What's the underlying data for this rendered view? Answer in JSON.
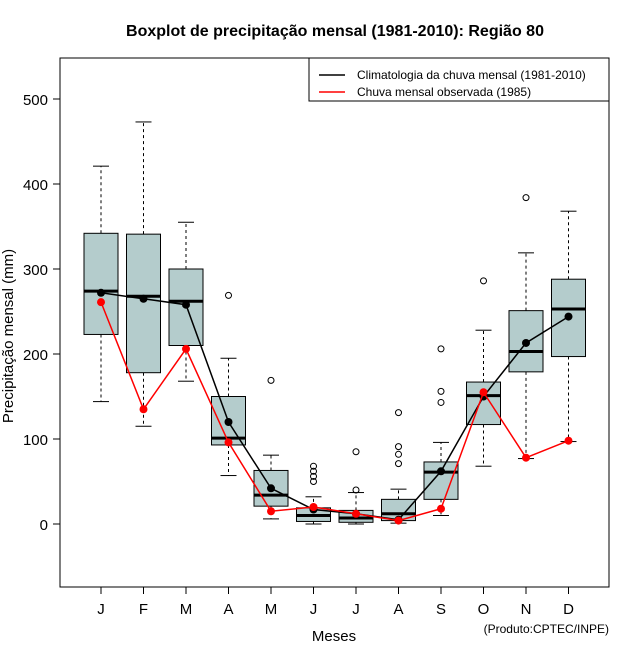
{
  "chart_data": {
    "type": "boxplot",
    "title": "Boxplot de precipitação mensal (1981-2010): Região 80",
    "xlabel": "Meses",
    "ylabel": "Precipitação mensal (mm)",
    "ylim": [
      -70,
      545
    ],
    "yticks": [
      0,
      100,
      200,
      300,
      400,
      500
    ],
    "categories": [
      "J",
      "F",
      "M",
      "A",
      "M",
      "J",
      "J",
      "A",
      "S",
      "O",
      "N",
      "D"
    ],
    "boxes": [
      {
        "whisker_low": 144,
        "q1": 223,
        "median": 274,
        "q3": 342,
        "whisker_high": 421,
        "outliers": []
      },
      {
        "whisker_low": 115,
        "q1": 178,
        "median": 268,
        "q3": 341,
        "whisker_high": 473,
        "outliers": []
      },
      {
        "whisker_low": 168,
        "q1": 210,
        "median": 262,
        "q3": 300,
        "whisker_high": 355,
        "outliers": []
      },
      {
        "whisker_low": 57,
        "q1": 93,
        "median": 101,
        "q3": 150,
        "whisker_high": 195,
        "outliers": [
          269
        ]
      },
      {
        "whisker_low": 6,
        "q1": 21,
        "median": 34,
        "q3": 63,
        "whisker_high": 81,
        "outliers": [
          169
        ]
      },
      {
        "whisker_low": 0,
        "q1": 3,
        "median": 10,
        "q3": 19,
        "whisker_high": 32,
        "outliers": [
          50,
          56,
          62,
          68
        ]
      },
      {
        "whisker_low": 0,
        "q1": 2,
        "median": 7,
        "q3": 16,
        "whisker_high": 37,
        "outliers": [
          40,
          85
        ]
      },
      {
        "whisker_low": 1,
        "q1": 4,
        "median": 12,
        "q3": 29,
        "whisker_high": 41,
        "outliers": [
          71,
          82,
          91,
          131
        ]
      },
      {
        "whisker_low": 10,
        "q1": 29,
        "median": 61,
        "q3": 73,
        "whisker_high": 96,
        "outliers": [
          143,
          156,
          206
        ]
      },
      {
        "whisker_low": 68,
        "q1": 117,
        "median": 151,
        "q3": 167,
        "whisker_high": 228,
        "outliers": [
          286
        ]
      },
      {
        "whisker_low": 77,
        "q1": 179,
        "median": 203,
        "q3": 251,
        "whisker_high": 319,
        "outliers": [
          384
        ]
      },
      {
        "whisker_low": 97,
        "q1": 197,
        "median": 253,
        "q3": 288,
        "whisker_high": 368,
        "outliers": []
      }
    ],
    "series": [
      {
        "name": "Climatologia da chuva mensal (1981-2010)",
        "color": "#000000",
        "values": [
          272,
          265,
          258,
          120,
          42,
          17,
          12,
          5,
          62,
          150,
          213,
          244
        ]
      },
      {
        "name": "Chuva mensal observada (1985)",
        "color": "#ff0000",
        "values": [
          261,
          135,
          206,
          96,
          15,
          20,
          12,
          4,
          18,
          155,
          78,
          98
        ]
      }
    ],
    "box_fill": "#b4cccc",
    "legend_position": "top-right",
    "credit": "(Produto:CPTEC/INPE)"
  }
}
